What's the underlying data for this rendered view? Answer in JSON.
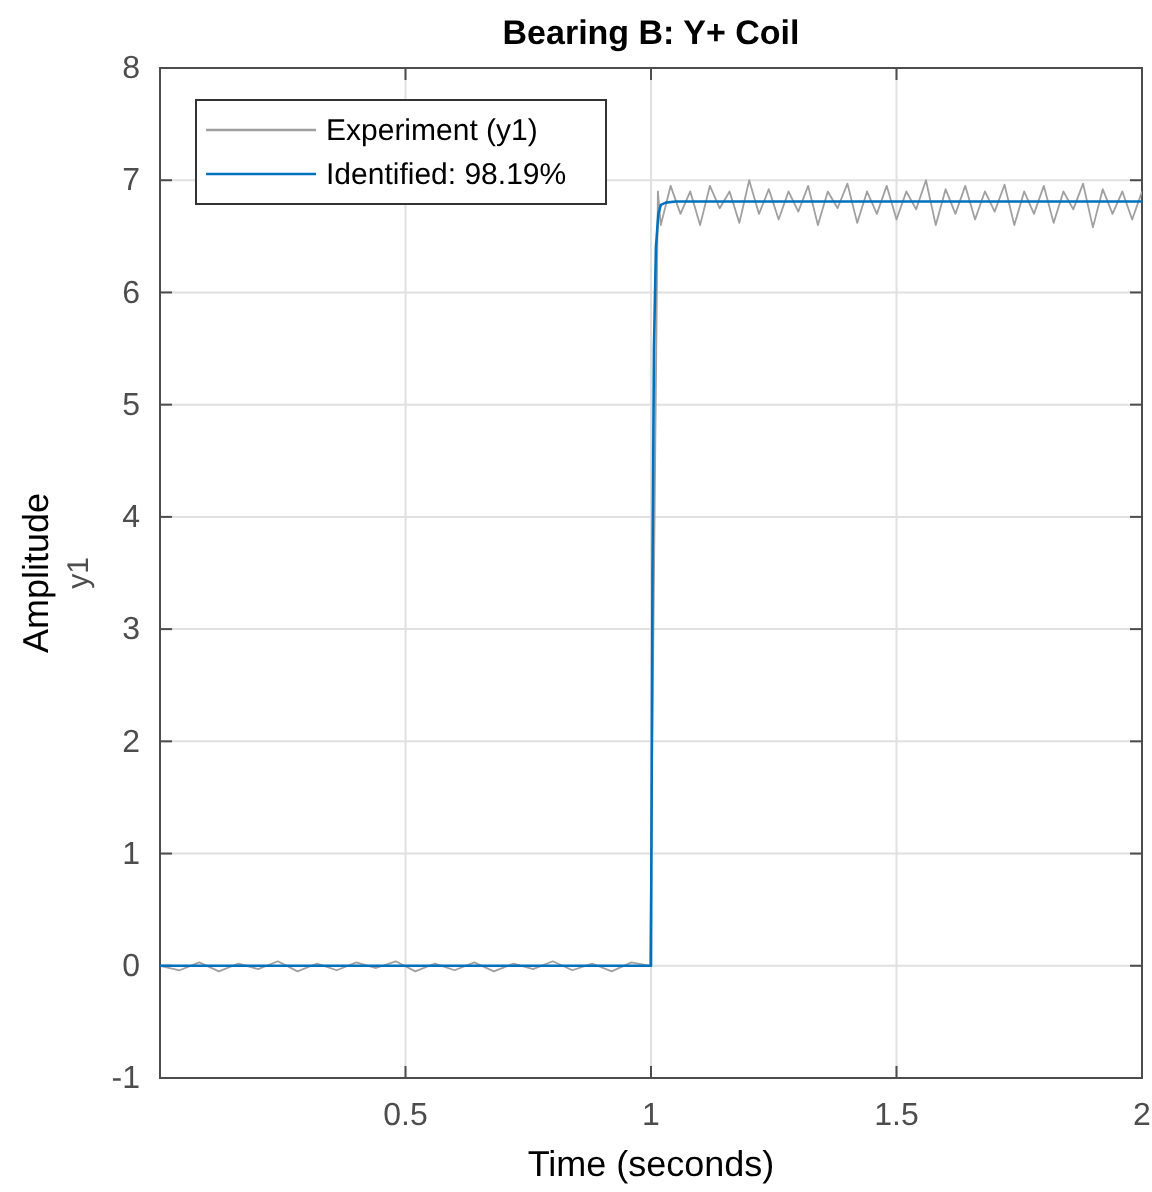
{
  "chart_data": {
    "type": "line",
    "title": "Bearing B: Y+ Coil",
    "xlabel": "Time (seconds)",
    "ylabel": "Amplitude",
    "annotations": [
      "y1"
    ],
    "xlim": [
      0,
      2
    ],
    "xticks": [
      0.5,
      1,
      1.5,
      2
    ],
    "ylim": [
      -1,
      8
    ],
    "yticks": [
      -1,
      0,
      1,
      2,
      3,
      4,
      5,
      6,
      7,
      8
    ],
    "grid": true,
    "legend": "top left",
    "series": [
      {
        "name": "Experiment (y1)",
        "color": "#a0a0a0",
        "x": [
          0,
          0.04,
          0.08,
          0.12,
          0.16,
          0.2,
          0.24,
          0.28,
          0.32,
          0.36,
          0.4,
          0.44,
          0.48,
          0.52,
          0.56,
          0.6,
          0.64,
          0.68,
          0.72,
          0.76,
          0.8,
          0.84,
          0.88,
          0.92,
          0.96,
          0.998,
          1.014,
          1.02,
          1.04,
          1.06,
          1.08,
          1.1,
          1.12,
          1.14,
          1.16,
          1.18,
          1.2,
          1.22,
          1.24,
          1.26,
          1.28,
          1.3,
          1.32,
          1.34,
          1.36,
          1.38,
          1.4,
          1.42,
          1.44,
          1.46,
          1.48,
          1.5,
          1.52,
          1.54,
          1.56,
          1.58,
          1.6,
          1.62,
          1.64,
          1.66,
          1.68,
          1.7,
          1.72,
          1.74,
          1.76,
          1.78,
          1.8,
          1.82,
          1.84,
          1.86,
          1.88,
          1.9,
          1.92,
          1.94,
          1.96,
          1.98,
          2
        ],
        "values": [
          0,
          -0.04,
          0.03,
          -0.05,
          0.02,
          -0.03,
          0.04,
          -0.05,
          0.02,
          -0.04,
          0.03,
          -0.02,
          0.04,
          -0.05,
          0.02,
          -0.04,
          0.03,
          -0.05,
          0.02,
          -0.03,
          0.04,
          -0.04,
          0.02,
          -0.05,
          0.03,
          0,
          6.9,
          6.6,
          6.95,
          6.7,
          6.9,
          6.6,
          6.95,
          6.75,
          6.9,
          6.62,
          7.0,
          6.7,
          6.92,
          6.65,
          6.9,
          6.72,
          6.95,
          6.6,
          6.9,
          6.75,
          6.97,
          6.62,
          6.9,
          6.7,
          6.95,
          6.65,
          6.9,
          6.74,
          7.0,
          6.6,
          6.92,
          6.7,
          6.95,
          6.65,
          6.9,
          6.72,
          6.96,
          6.6,
          6.9,
          6.7,
          6.95,
          6.62,
          6.9,
          6.74,
          6.97,
          6.58,
          6.92,
          6.7,
          6.9,
          6.65,
          6.9
        ]
      },
      {
        "name": "Identified: 98.19%",
        "color": "#0072bd",
        "x": [
          0,
          1,
          1.003,
          1.006,
          1.01,
          1.015,
          1.02,
          1.03,
          1.05,
          2
        ],
        "values": [
          0,
          0,
          3.5,
          5.5,
          6.4,
          6.7,
          6.78,
          6.8,
          6.81,
          6.81
        ]
      }
    ]
  }
}
